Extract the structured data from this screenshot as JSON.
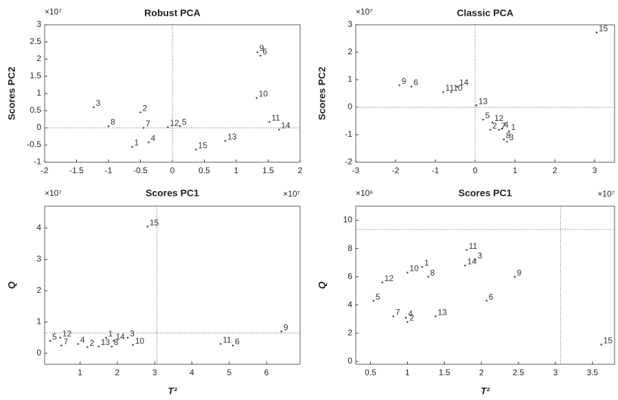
{
  "chart_data": [
    {
      "type": "scatter",
      "title": "Robust PCA",
      "xlabel": "Scores PC1",
      "ylabel": "Scores PC2",
      "y_exponent": "×10⁷",
      "x_exponent": "×10⁷",
      "labels": [
        "1",
        "2",
        "3",
        "4",
        "5",
        "6",
        "7",
        "8",
        "9",
        "10",
        "11",
        "12",
        "13",
        "14",
        "15"
      ],
      "x": [
        -0.63,
        -0.5,
        -1.23,
        -0.37,
        0.12,
        1.38,
        -0.45,
        -1.0,
        1.33,
        1.32,
        1.52,
        -0.07,
        0.83,
        1.67,
        0.37
      ],
      "y": [
        -0.55,
        0.45,
        0.6,
        -0.42,
        0.05,
        2.1,
        0.0,
        0.05,
        2.2,
        0.87,
        0.17,
        0.02,
        -0.38,
        -0.05,
        -0.63
      ],
      "xlim": [
        -2,
        2
      ],
      "ylim": [
        -1,
        3
      ],
      "xticks": [
        -2,
        -1.5,
        -1,
        -0.5,
        0,
        0.5,
        1,
        1.5,
        2
      ],
      "yticks": [
        -1,
        -0.5,
        0,
        0.5,
        1,
        1.5,
        2,
        2.5,
        3
      ],
      "vline": 0,
      "hline": 0,
      "color": "#444444"
    },
    {
      "type": "scatter",
      "title": "Classic PCA",
      "xlabel": "Scores PC1",
      "ylabel": "Scores PC2",
      "y_exponent": "×10⁷",
      "x_exponent": "×10⁷",
      "labels": [
        "1",
        "2",
        "3",
        "4",
        "5",
        "6",
        "7",
        "8",
        "9",
        "10",
        "11",
        "12",
        "13",
        "14",
        "15"
      ],
      "x": [
        0.85,
        0.38,
        0.8,
        0.67,
        0.2,
        -1.6,
        0.6,
        0.72,
        -1.9,
        -0.6,
        -0.8,
        0.43,
        0.03,
        -0.45,
        3.05
      ],
      "y": [
        -0.87,
        -0.82,
        -1.25,
        -0.78,
        -0.45,
        0.75,
        -0.82,
        -1.17,
        0.8,
        0.55,
        0.55,
        -0.55,
        0.07,
        0.75,
        2.72
      ],
      "xlim": [
        -3,
        3.5
      ],
      "ylim": [
        -2,
        3
      ],
      "xticks": [
        -3,
        -2,
        -1,
        0,
        1,
        2,
        3
      ],
      "yticks": [
        -2,
        -1,
        0,
        1,
        2,
        3
      ],
      "vline": 0,
      "hline": 0,
      "color": "#444444"
    },
    {
      "type": "scatter",
      "xlabel": "T²",
      "ylabel": "Q",
      "y_exponent": "×10⁷",
      "labels": [
        "1",
        "2",
        "3",
        "4",
        "5",
        "6",
        "7",
        "8",
        "9",
        "10",
        "11",
        "12",
        "13",
        "14",
        "15"
      ],
      "x": [
        1.7,
        1.2,
        2.28,
        0.95,
        0.2,
        5.1,
        0.5,
        1.85,
        6.4,
        2.42,
        4.77,
        0.47,
        1.5,
        1.9,
        2.81
      ],
      "y": [
        0.5,
        0.2,
        0.5,
        0.3,
        0.4,
        0.25,
        0.25,
        0.22,
        0.7,
        0.27,
        0.3,
        0.5,
        0.22,
        0.4,
        4.05
      ],
      "xlim": [
        0.05,
        6.9
      ],
      "ylim": [
        -0.35,
        4.7
      ],
      "xticks": [
        1,
        2,
        3,
        4,
        5,
        6
      ],
      "yticks": [
        0,
        1,
        2,
        3,
        4
      ],
      "vline": 3.06,
      "hline": 0.65,
      "color": "#444444"
    },
    {
      "type": "scatter",
      "xlabel": "T²",
      "ylabel": "Q",
      "y_exponent": "×10⁶",
      "labels": [
        "1",
        "2",
        "3",
        "4",
        "5",
        "6",
        "7",
        "8",
        "9",
        "10",
        "11",
        "12",
        "13",
        "14",
        "15"
      ],
      "x": [
        1.2,
        1.0,
        1.92,
        0.98,
        0.54,
        2.07,
        0.81,
        1.28,
        2.45,
        1.0,
        1.8,
        0.66,
        1.38,
        1.78,
        3.62
      ],
      "y": [
        6.7,
        2.8,
        7.2,
        3.1,
        4.3,
        4.3,
        3.2,
        6.0,
        6.0,
        6.3,
        7.9,
        5.6,
        3.2,
        6.8,
        1.2
      ],
      "xlim": [
        0.3,
        3.8
      ],
      "ylim": [
        -0.2,
        11
      ],
      "xticks": [
        0.5,
        1,
        1.5,
        2,
        2.5,
        3,
        3.5
      ],
      "yticks": [
        0,
        2,
        4,
        6,
        8,
        10
      ],
      "vline": 3.07,
      "hline": 9.35,
      "color": "#444444"
    }
  ]
}
